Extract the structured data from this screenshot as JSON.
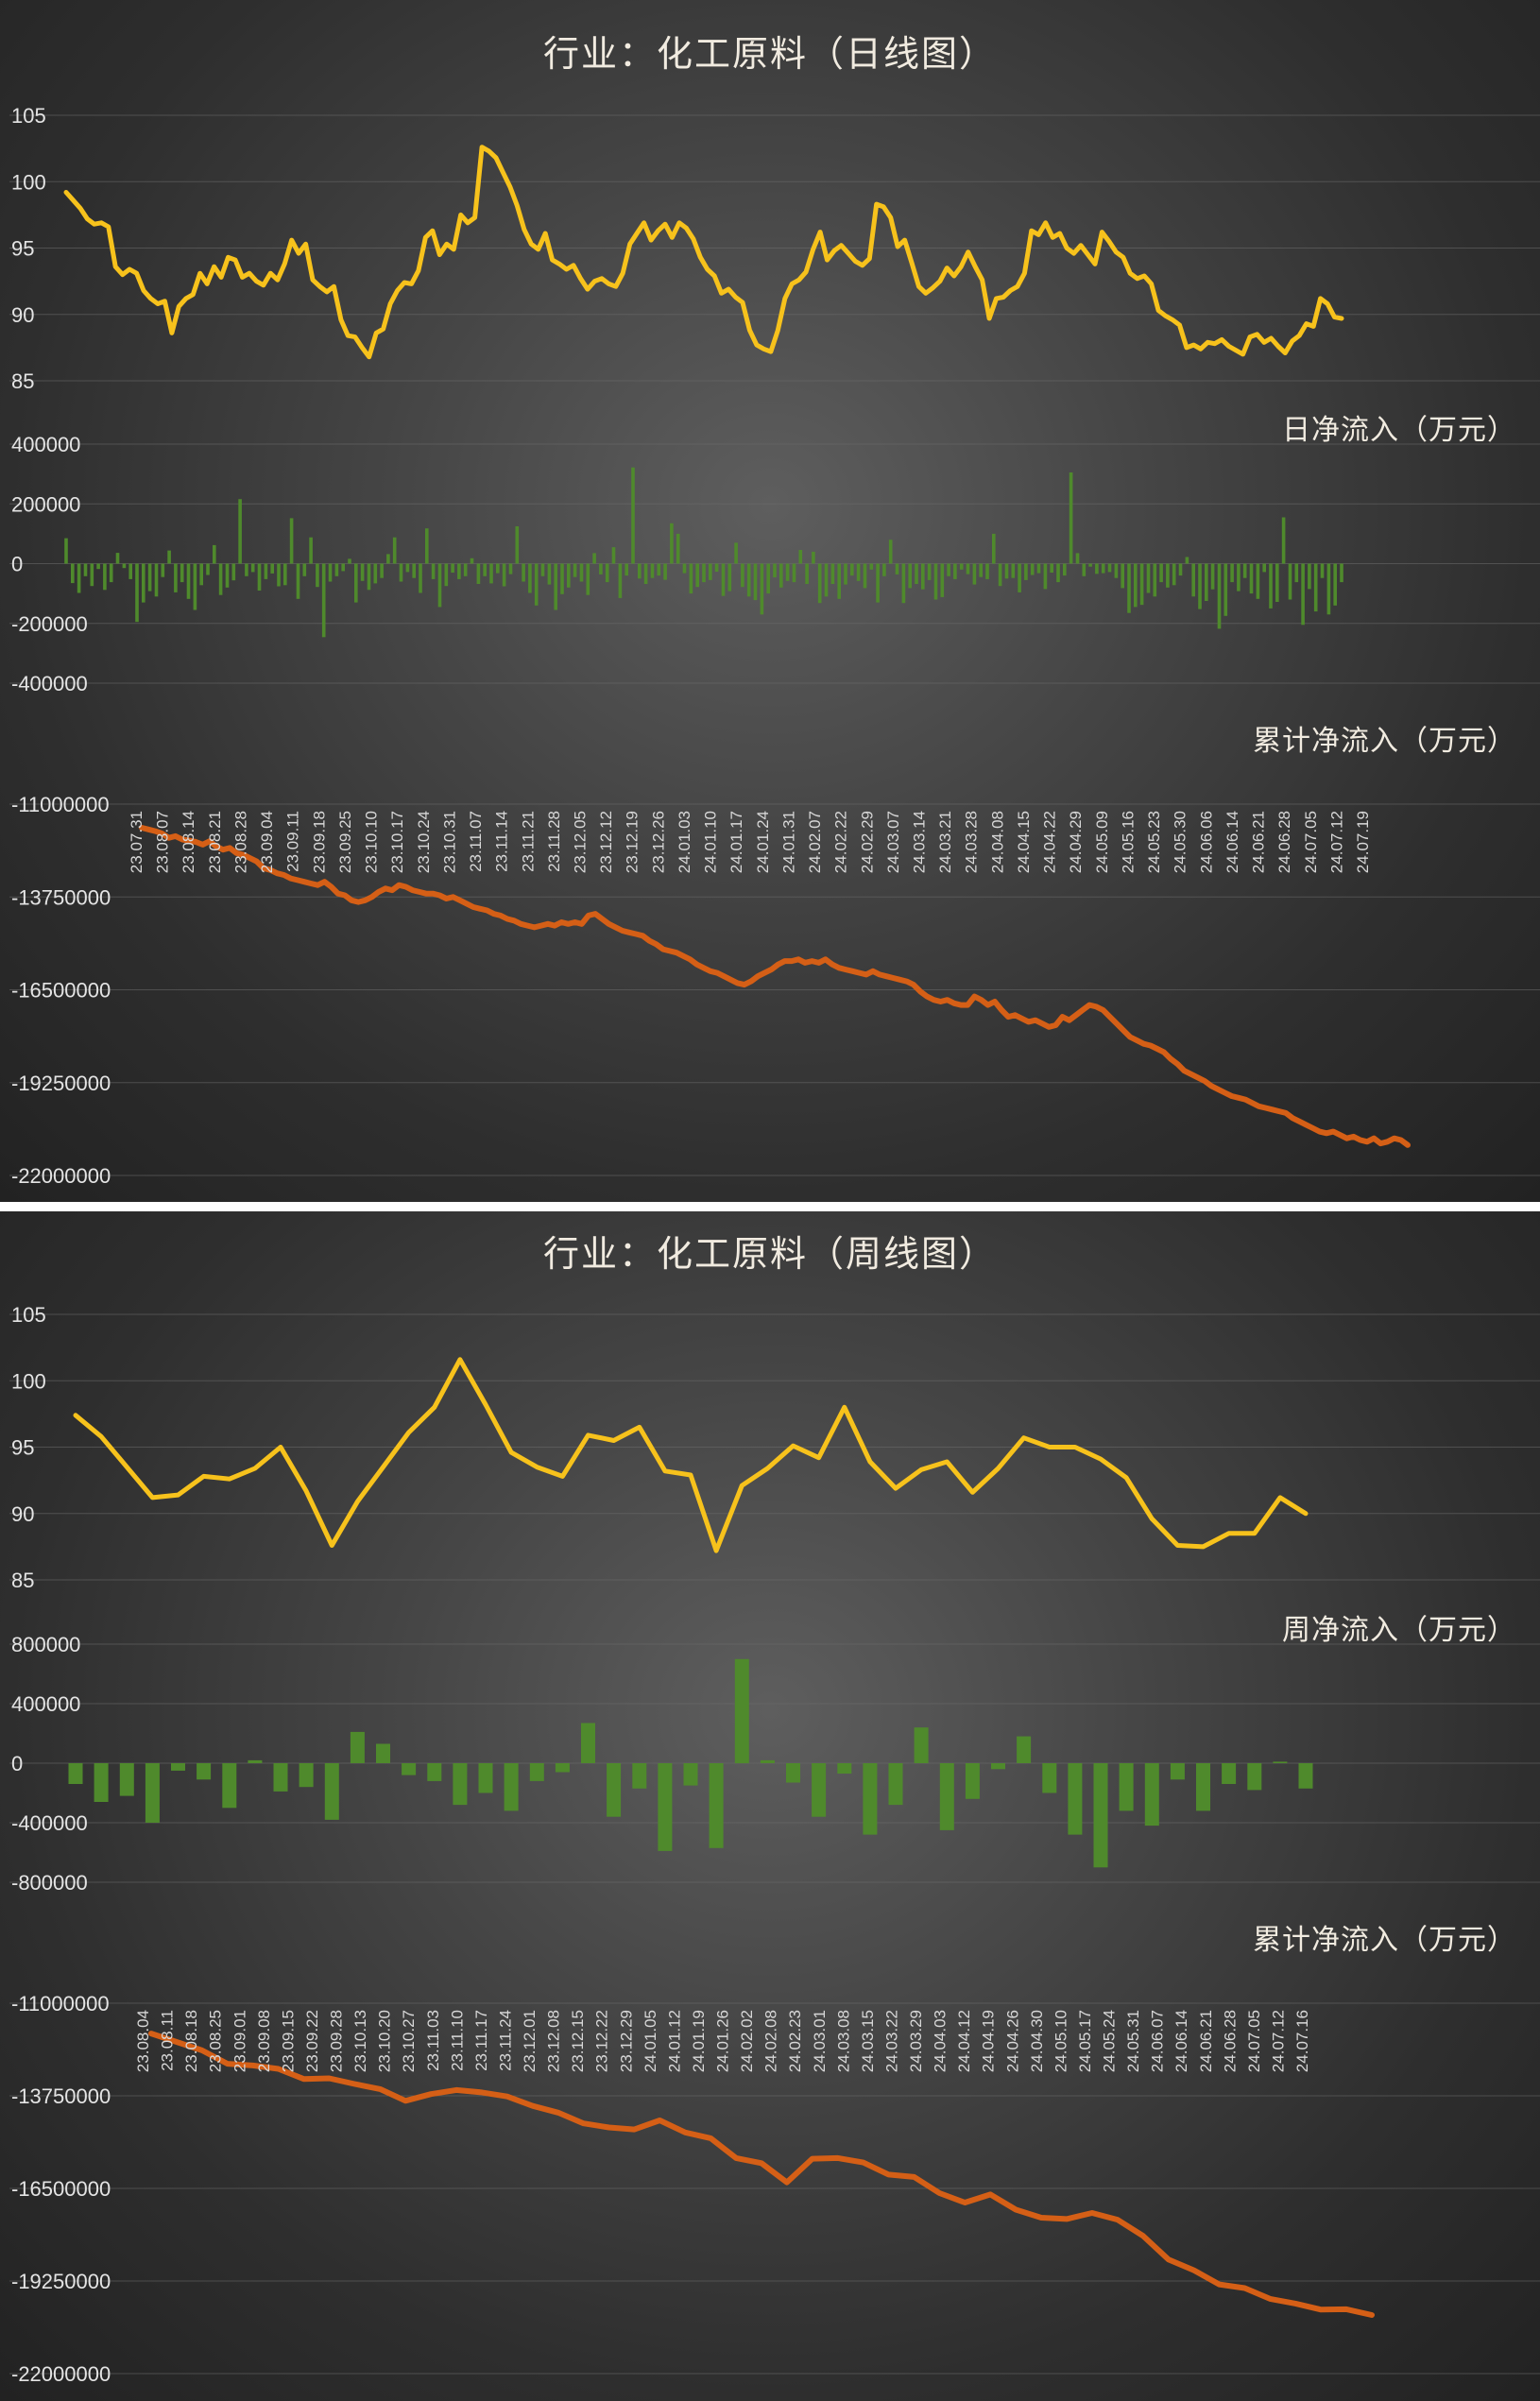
{
  "charts": [
    {
      "id": "daily",
      "title": "行业：化工原料（日线图）",
      "price": {
        "yticks": [
          "105",
          "100",
          "95",
          "90",
          "85"
        ],
        "ylim": [
          85,
          105
        ],
        "values": [
          99.2,
          98.6,
          98.0,
          97.2,
          96.8,
          96.9,
          96.6,
          93.6,
          93.0,
          93.4,
          93.1,
          91.8,
          91.2,
          90.8,
          91.0,
          88.6,
          90.6,
          91.2,
          91.5,
          93.1,
          92.3,
          93.6,
          92.8,
          94.3,
          94.1,
          92.8,
          93.1,
          92.5,
          92.2,
          93.1,
          92.6,
          93.8,
          95.6,
          94.6,
          95.3,
          92.6,
          92.1,
          91.7,
          92.1,
          89.6,
          88.4,
          88.3,
          87.5,
          86.8,
          88.6,
          88.9,
          90.8,
          91.8,
          92.4,
          92.3,
          93.3,
          95.8,
          96.3,
          94.5,
          95.3,
          94.9,
          97.5,
          96.9,
          97.3,
          102.6,
          102.3,
          101.8,
          100.7,
          99.6,
          98.2,
          96.4,
          95.3,
          94.9,
          96.1,
          94.1,
          93.8,
          93.4,
          93.7,
          92.7,
          91.9,
          92.5,
          92.7,
          92.3,
          92.1,
          93.1,
          95.3,
          96.1,
          96.9,
          95.6,
          96.3,
          96.8,
          95.8,
          96.9,
          96.5,
          95.7,
          94.3,
          93.4,
          92.9,
          91.6,
          91.9,
          91.3,
          90.9,
          88.8,
          87.7,
          87.4,
          87.2,
          88.8,
          91.2,
          92.3,
          92.6,
          93.2,
          94.9,
          96.2,
          94.1,
          94.8,
          95.2,
          94.6,
          94.0,
          93.7,
          94.2,
          98.3,
          98.1,
          97.3,
          95.1,
          95.6,
          93.9,
          92.1,
          91.6,
          92.0,
          92.5,
          93.5,
          92.9,
          93.6,
          94.7,
          93.6,
          92.6,
          89.7,
          91.2,
          91.3,
          91.8,
          92.1,
          93.1,
          96.3,
          96.0,
          96.9,
          95.8,
          96.1,
          95.0,
          94.6,
          95.2,
          94.5,
          93.8,
          96.2,
          95.5,
          94.7,
          94.3,
          93.1,
          92.7,
          92.9,
          92.3,
          90.3,
          89.9,
          89.6,
          89.2,
          87.5,
          87.7,
          87.4,
          87.9,
          87.8,
          88.1,
          87.6,
          87.3,
          87.0,
          88.3,
          88.5,
          87.9,
          88.2,
          87.6,
          87.1,
          88.0,
          88.4,
          89.3,
          89.1,
          91.2,
          90.8,
          89.8,
          89.7
        ],
        "color": "#f7c21c"
      },
      "flow": {
        "label": "日净流入（万元）",
        "yticks": [
          "400000",
          "200000",
          "0",
          "-200000",
          "-400000"
        ],
        "ylim": [
          -400000,
          400000
        ],
        "values": [
          85000,
          -65000,
          -98000,
          -42000,
          -75000,
          -18000,
          -88000,
          -62000,
          36000,
          -15000,
          -52000,
          -195000,
          -130000,
          -92000,
          -110000,
          -45000,
          44000,
          -96000,
          -62000,
          -118000,
          -155000,
          -72000,
          -38000,
          62000,
          -105000,
          -80000,
          -56000,
          216000,
          -42000,
          -28000,
          -90000,
          -52000,
          -33000,
          -76000,
          -72000,
          152000,
          -118000,
          -42000,
          88000,
          -78000,
          -246000,
          -60000,
          -42000,
          -25000,
          16000,
          -130000,
          -58000,
          -88000,
          -66000,
          -48000,
          32000,
          88000,
          -60000,
          -28000,
          -48000,
          -98000,
          118000,
          -52000,
          -145000,
          -75000,
          -30000,
          -52000,
          -42000,
          18000,
          -68000,
          -42000,
          -66000,
          -32000,
          -76000,
          -35000,
          125000,
          -60000,
          -98000,
          -140000,
          -42000,
          -70000,
          -155000,
          -102000,
          -80000,
          -45000,
          -60000,
          -105000,
          35000,
          -36000,
          -62000,
          55000,
          -115000,
          -40000,
          322000,
          -50000,
          -68000,
          -48000,
          -40000,
          -54000,
          135000,
          100000,
          -32000,
          -100000,
          -78000,
          -62000,
          -55000,
          -27000,
          -108000,
          -92000,
          70000,
          -78000,
          -110000,
          -122000,
          -170000,
          -100000,
          -46000,
          -80000,
          -58000,
          -62000,
          46000,
          -68000,
          40000,
          -132000,
          -110000,
          -68000,
          -118000,
          -70000,
          -40000,
          -58000,
          -82000,
          -20000,
          -130000,
          -42000,
          80000,
          -36000,
          -132000,
          -82000,
          -68000,
          -86000,
          -55000,
          -120000,
          -112000,
          -42000,
          -52000,
          -20000,
          -35000,
          -70000,
          -45000,
          -52000,
          100000,
          -75000,
          -50000,
          -48000,
          -96000,
          -55000,
          -38000,
          -32000,
          -85000,
          -30000,
          -62000,
          -40000,
          305000,
          35000,
          -42000,
          -10000,
          -34000,
          -32000,
          -28000,
          -48000,
          -82000,
          -165000,
          -145000,
          -138000,
          -98000,
          -110000,
          -62000,
          -80000,
          -72000,
          -40000,
          22000,
          -110000,
          -152000,
          -125000,
          -86000,
          -218000,
          -175000,
          -62000,
          -92000,
          -48000,
          -100000,
          -118000,
          -28000,
          -150000,
          -128000,
          155000,
          -120000,
          -62000,
          -205000,
          -85000,
          -160000,
          -48000,
          -170000,
          -140000,
          -62000
        ],
        "color": "#4f8a2c"
      },
      "cumulative": {
        "label": "累计净流入（万元）",
        "yticks": [
          "-11000000",
          "-13750000",
          "-16500000",
          "-19250000",
          "-22000000"
        ],
        "ylim": [
          -22000000,
          -11000000
        ],
        "values": [
          -11700000,
          -11750000,
          -11800000,
          -11870000,
          -12000000,
          -11950000,
          -12050000,
          -12080000,
          -12120000,
          -12200000,
          -12100000,
          -12250000,
          -12350000,
          -12300000,
          -12450000,
          -12500000,
          -12600000,
          -12700000,
          -12900000,
          -12950000,
          -13050000,
          -13100000,
          -13200000,
          -13250000,
          -13300000,
          -13350000,
          -13400000,
          -13300000,
          -13450000,
          -13650000,
          -13700000,
          -13850000,
          -13900000,
          -13850000,
          -13750000,
          -13600000,
          -13500000,
          -13550000,
          -13400000,
          -13450000,
          -13550000,
          -13600000,
          -13650000,
          -13650000,
          -13700000,
          -13800000,
          -13750000,
          -13850000,
          -13950000,
          -14050000,
          -14100000,
          -14150000,
          -14250000,
          -14300000,
          -14400000,
          -14450000,
          -14550000,
          -14600000,
          -14650000,
          -14600000,
          -14550000,
          -14600000,
          -14500000,
          -14550000,
          -14500000,
          -14550000,
          -14300000,
          -14250000,
          -14400000,
          -14550000,
          -14650000,
          -14750000,
          -14800000,
          -14850000,
          -14900000,
          -15050000,
          -15150000,
          -15300000,
          -15350000,
          -15400000,
          -15500000,
          -15600000,
          -15750000,
          -15850000,
          -15950000,
          -16000000,
          -16100000,
          -16200000,
          -16300000,
          -16350000,
          -16250000,
          -16100000,
          -16000000,
          -15900000,
          -15750000,
          -15650000,
          -15650000,
          -15600000,
          -15700000,
          -15650000,
          -15700000,
          -15600000,
          -15750000,
          -15850000,
          -15900000,
          -15950000,
          -16000000,
          -16050000,
          -15950000,
          -16050000,
          -16100000,
          -16150000,
          -16200000,
          -16250000,
          -16350000,
          -16550000,
          -16700000,
          -16800000,
          -16850000,
          -16800000,
          -16900000,
          -16950000,
          -16950000,
          -16700000,
          -16800000,
          -16950000,
          -16850000,
          -17100000,
          -17300000,
          -17250000,
          -17350000,
          -17450000,
          -17400000,
          -17500000,
          -17600000,
          -17550000,
          -17300000,
          -17400000,
          -17250000,
          -17100000,
          -16950000,
          -17000000,
          -17100000,
          -17300000,
          -17500000,
          -17700000,
          -17900000,
          -18000000,
          -18100000,
          -18150000,
          -18250000,
          -18350000,
          -18550000,
          -18700000,
          -18900000,
          -19000000,
          -19100000,
          -19200000,
          -19350000,
          -19450000,
          -19550000,
          -19650000,
          -19700000,
          -19750000,
          -19850000,
          -19950000,
          -20000000,
          -20050000,
          -20100000,
          -20150000,
          -20300000,
          -20400000,
          -20500000,
          -20600000,
          -20700000,
          -20750000,
          -20700000,
          -20800000,
          -20900000,
          -20850000,
          -20950000,
          -21000000,
          -20900000,
          -21050000,
          -21000000,
          -20900000,
          -20950000,
          -21100000
        ],
        "color": "#d55f16"
      },
      "date_labels": [
        "23.07.31",
        "23.08.07",
        "23.08.14",
        "23.08.21",
        "23.08.28",
        "23.09.04",
        "23.09.11",
        "23.09.18",
        "23.09.25",
        "23.10.10",
        "23.10.17",
        "23.10.24",
        "23.10.31",
        "23.11.07",
        "23.11.14",
        "23.11.21",
        "23.11.28",
        "23.12.05",
        "23.12.12",
        "23.12.19",
        "23.12.26",
        "24.01.03",
        "24.01.10",
        "24.01.17",
        "24.01.24",
        "24.01.31",
        "24.02.07",
        "24.02.22",
        "24.02.29",
        "24.03.07",
        "24.03.14",
        "24.03.21",
        "24.03.28",
        "24.04.08",
        "24.04.15",
        "24.04.22",
        "24.04.29",
        "24.05.09",
        "24.05.16",
        "24.05.23",
        "24.05.30",
        "24.06.06",
        "24.06.14",
        "24.06.21",
        "24.06.28",
        "24.07.05",
        "24.07.12",
        "24.07.19"
      ]
    },
    {
      "id": "weekly",
      "title": "行业：化工原料（周线图）",
      "price": {
        "yticks": [
          "105",
          "100",
          "95",
          "90",
          "85"
        ],
        "ylim": [
          85,
          105
        ],
        "values": [
          97.4,
          95.8,
          93.5,
          91.2,
          91.4,
          92.8,
          92.6,
          93.4,
          95.0,
          91.7,
          87.6,
          90.9,
          93.5,
          96.1,
          98.0,
          101.6,
          98.2,
          94.6,
          93.5,
          92.8,
          95.9,
          95.5,
          96.5,
          93.2,
          92.9,
          87.2,
          92.1,
          93.4,
          95.1,
          94.2,
          98.0,
          93.9,
          91.9,
          93.3,
          93.9,
          91.6,
          93.4,
          95.7,
          95.0,
          95.0,
          94.1,
          92.7,
          89.6,
          87.6,
          87.5,
          88.5,
          88.5,
          91.2,
          90.0
        ],
        "color": "#f7c21c"
      },
      "flow": {
        "label": "周净流入（万元）",
        "yticks": [
          "800000",
          "400000",
          "0",
          "-400000",
          "-800000"
        ],
        "ylim": [
          -800000,
          800000
        ],
        "values": [
          -140000,
          -260000,
          -220000,
          -400000,
          -50000,
          -110000,
          -300000,
          20000,
          -190000,
          -160000,
          -380000,
          210000,
          130000,
          -80000,
          -120000,
          -280000,
          -200000,
          -320000,
          -120000,
          -60000,
          270000,
          -360000,
          -170000,
          -590000,
          -150000,
          -570000,
          700000,
          20000,
          -130000,
          -360000,
          -70000,
          -480000,
          -280000,
          240000,
          -450000,
          -240000,
          -40000,
          180000,
          -200000,
          -480000,
          -700000,
          -320000,
          -420000,
          -110000,
          -320000,
          -140000,
          -180000,
          10000,
          -170000
        ],
        "color": "#4f8a2c"
      },
      "cumulative": {
        "label": "累计净流入（万元）",
        "yticks": [
          "-11000000",
          "-13750000",
          "-16500000",
          "-19250000",
          "-22000000"
        ],
        "ylim": [
          -22000000,
          -11000000
        ],
        "values": [
          -11900000,
          -12150000,
          -12400000,
          -12800000,
          -12850000,
          -12950000,
          -13250000,
          -13230000,
          -13400000,
          -13550000,
          -13900000,
          -13700000,
          -13580000,
          -13650000,
          -13770000,
          -14050000,
          -14250000,
          -14570000,
          -14690000,
          -14750000,
          -14480000,
          -14840000,
          -15010000,
          -15600000,
          -15750000,
          -16320000,
          -15620000,
          -15600000,
          -15730000,
          -16090000,
          -16160000,
          -16640000,
          -16920000,
          -16680000,
          -17130000,
          -17370000,
          -17410000,
          -17230000,
          -17430000,
          -17910000,
          -18610000,
          -18930000,
          -19350000,
          -19460000,
          -19780000,
          -19920000,
          -20100000,
          -20090000,
          -20260000
        ],
        "color": "#d55f16"
      },
      "date_labels": [
        "23.08.04",
        "23.08.11",
        "23.08.18",
        "23.08.25",
        "23.09.01",
        "23.09.08",
        "23.09.15",
        "23.09.22",
        "23.09.28",
        "23.10.13",
        "23.10.20",
        "23.10.27",
        "23.11.03",
        "23.11.10",
        "23.11.17",
        "23.11.24",
        "23.12.01",
        "23.12.08",
        "23.12.15",
        "23.12.22",
        "23.12.29",
        "24.01.05",
        "24.01.12",
        "24.01.19",
        "24.01.26",
        "24.02.02",
        "24.02.08",
        "24.02.23",
        "24.03.01",
        "24.03.08",
        "24.03.15",
        "24.03.22",
        "24.03.29",
        "24.04.03",
        "24.04.12",
        "24.04.19",
        "24.04.26",
        "24.04.30",
        "24.05.10",
        "24.05.17",
        "24.05.24",
        "24.05.31",
        "24.06.07",
        "24.06.14",
        "24.06.21",
        "24.06.28",
        "24.07.05",
        "24.07.12",
        "24.07.16"
      ]
    }
  ]
}
